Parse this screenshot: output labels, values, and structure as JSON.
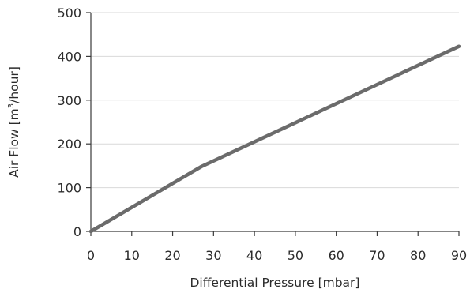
{
  "chart_data": {
    "type": "line",
    "title": "",
    "xlabel": "Differential Pressure [mbar]",
    "ylabel_parts": [
      "Air Flow [m",
      "3",
      "/hour]"
    ],
    "xlim": [
      0,
      90
    ],
    "ylim": [
      0,
      500
    ],
    "xticks": [
      0,
      10,
      20,
      30,
      40,
      50,
      60,
      70,
      80,
      90
    ],
    "yticks": [
      0,
      100,
      200,
      300,
      400,
      500
    ],
    "grid": "horizontal",
    "series": [
      {
        "points": [
          [
            0,
            0
          ],
          [
            27,
            148
          ],
          [
            90,
            423
          ]
        ],
        "color": "#6b6b6b"
      }
    ]
  }
}
